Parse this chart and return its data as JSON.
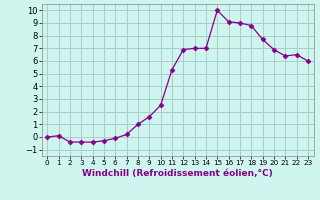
{
  "x": [
    0,
    1,
    2,
    3,
    4,
    5,
    6,
    7,
    8,
    9,
    10,
    11,
    12,
    13,
    14,
    15,
    16,
    17,
    18,
    19,
    20,
    21,
    22,
    23
  ],
  "y": [
    0,
    0.1,
    -0.4,
    -0.4,
    -0.4,
    -0.3,
    -0.1,
    0.2,
    1.0,
    1.6,
    2.5,
    5.3,
    6.9,
    7.0,
    7.0,
    10.0,
    9.1,
    9.0,
    8.8,
    7.7,
    6.9,
    6.4,
    6.5,
    6.0
  ],
  "line_color": "#880088",
  "marker": "D",
  "marker_size": 2.5,
  "bg_color": "#cef5ee",
  "grid_color": "#aacccc",
  "xlabel": "Windchill (Refroidissement éolien,°C)",
  "xlim": [
    -0.5,
    23.5
  ],
  "ylim": [
    -1.5,
    10.5
  ],
  "yticks": [
    -1,
    0,
    1,
    2,
    3,
    4,
    5,
    6,
    7,
    8,
    9,
    10
  ],
  "xticks": [
    0,
    1,
    2,
    3,
    4,
    5,
    6,
    7,
    8,
    9,
    10,
    11,
    12,
    13,
    14,
    15,
    16,
    17,
    18,
    19,
    20,
    21,
    22,
    23
  ],
  "xlabel_fontsize": 6.5,
  "ytick_fontsize": 6.0,
  "xtick_fontsize": 5.2
}
